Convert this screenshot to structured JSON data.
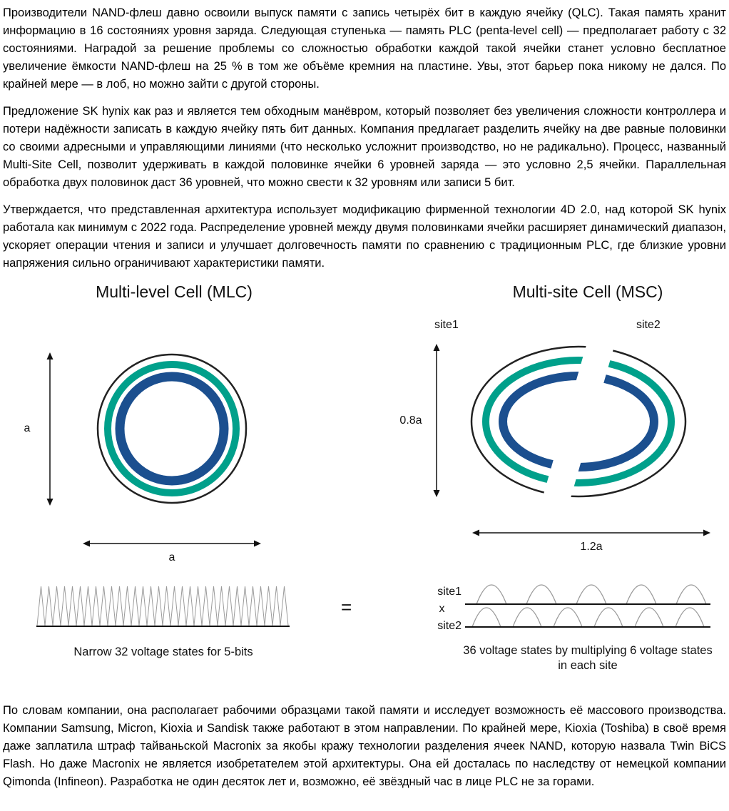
{
  "article": {
    "paragraphs": [
      "Производители NAND-флеш давно освоили выпуск памяти с запись четырёх бит в каждую ячейку (QLC). Такая память хранит информацию в 16 состояниях уровня заряда. Следующая ступенька — память PLC (penta-level cell) — предполагает работу с 32 состояниями. Наградой за решение проблемы со сложностью обработки каждой такой ячейки станет условно бесплатное увеличение ёмкости NAND-флеш на 25 % в том же объёме кремния на пластине. Увы, этот барьер пока никому не дался. По крайней мере — в лоб, но можно зайти с другой стороны.",
      "Предложение SK hynix как раз и является тем обходным манёвром, который позволяет без увеличения сложности контроллера и потери надёжности записать в каждую ячейку пять бит данных. Компания предлагает разделить ячейку на две равные половинки со своими адресными и управляющими линиями (что несколько усложнит производство, но не радикально). Процесс, названный Multi-Site Cell, позволит удерживать в каждой половинке ячейки 6 уровней заряда — это условно 2,5 ячейки. Параллельная обработка двух половинок даст 36 уровней, что можно свести к 32 уровням или записи 5 бит.",
      "Утверждается, что представленная архитектура использует модификацию фирменной технологии 4D 2.0, над которой SK hynix работала как минимум с 2022 года. Распределение уровней между двумя половинками ячейки расширяет динамический диапазон, ускоряет операции чтения и записи и улучшает долговечность памяти по сравнению с традиционным PLC, где близкие уровни напряжения сильно ограничивают характеристики памяти.",
      "По словам компании, она располагает рабочими образцами такой памяти и исследует возможность её массового производства. Компании Samsung, Micron, Kioxia и Sandisk также работают в этом направлении. По крайней мере, Kioxia (Toshiba) в своё время даже заплатила штраф тайваньской Macronix за якобы кражу технологии разделения ячеек NAND, которую назвала Twin BiCS Flash. Но даже Macronix не является изобретателем этой архитектуры. Она ей досталась по наследству от немецкой компании Qimonda (Infineon). Разработка не один десяток лет и, возможно, её звёздный час в лице PLC не за горами."
    ]
  },
  "figure": {
    "left": {
      "title": "Multi-level Cell (MLC)",
      "height_label": "a",
      "width_label": "a",
      "caption": "Narrow 32 voltage states for 5-bits"
    },
    "right": {
      "title": "Multi-site Cell (MSC)",
      "site1_label": "site1",
      "site2_label": "site2",
      "height_label": "0.8a",
      "width_label": "1.2a",
      "wave_site1": "site1",
      "wave_x": "x",
      "wave_site2": "site2",
      "caption": "36 voltage states by multiplying 6 voltage states in each site"
    },
    "equals": "=",
    "colors": {
      "teal": "#00A08B",
      "blue": "#1B4F8F"
    }
  }
}
